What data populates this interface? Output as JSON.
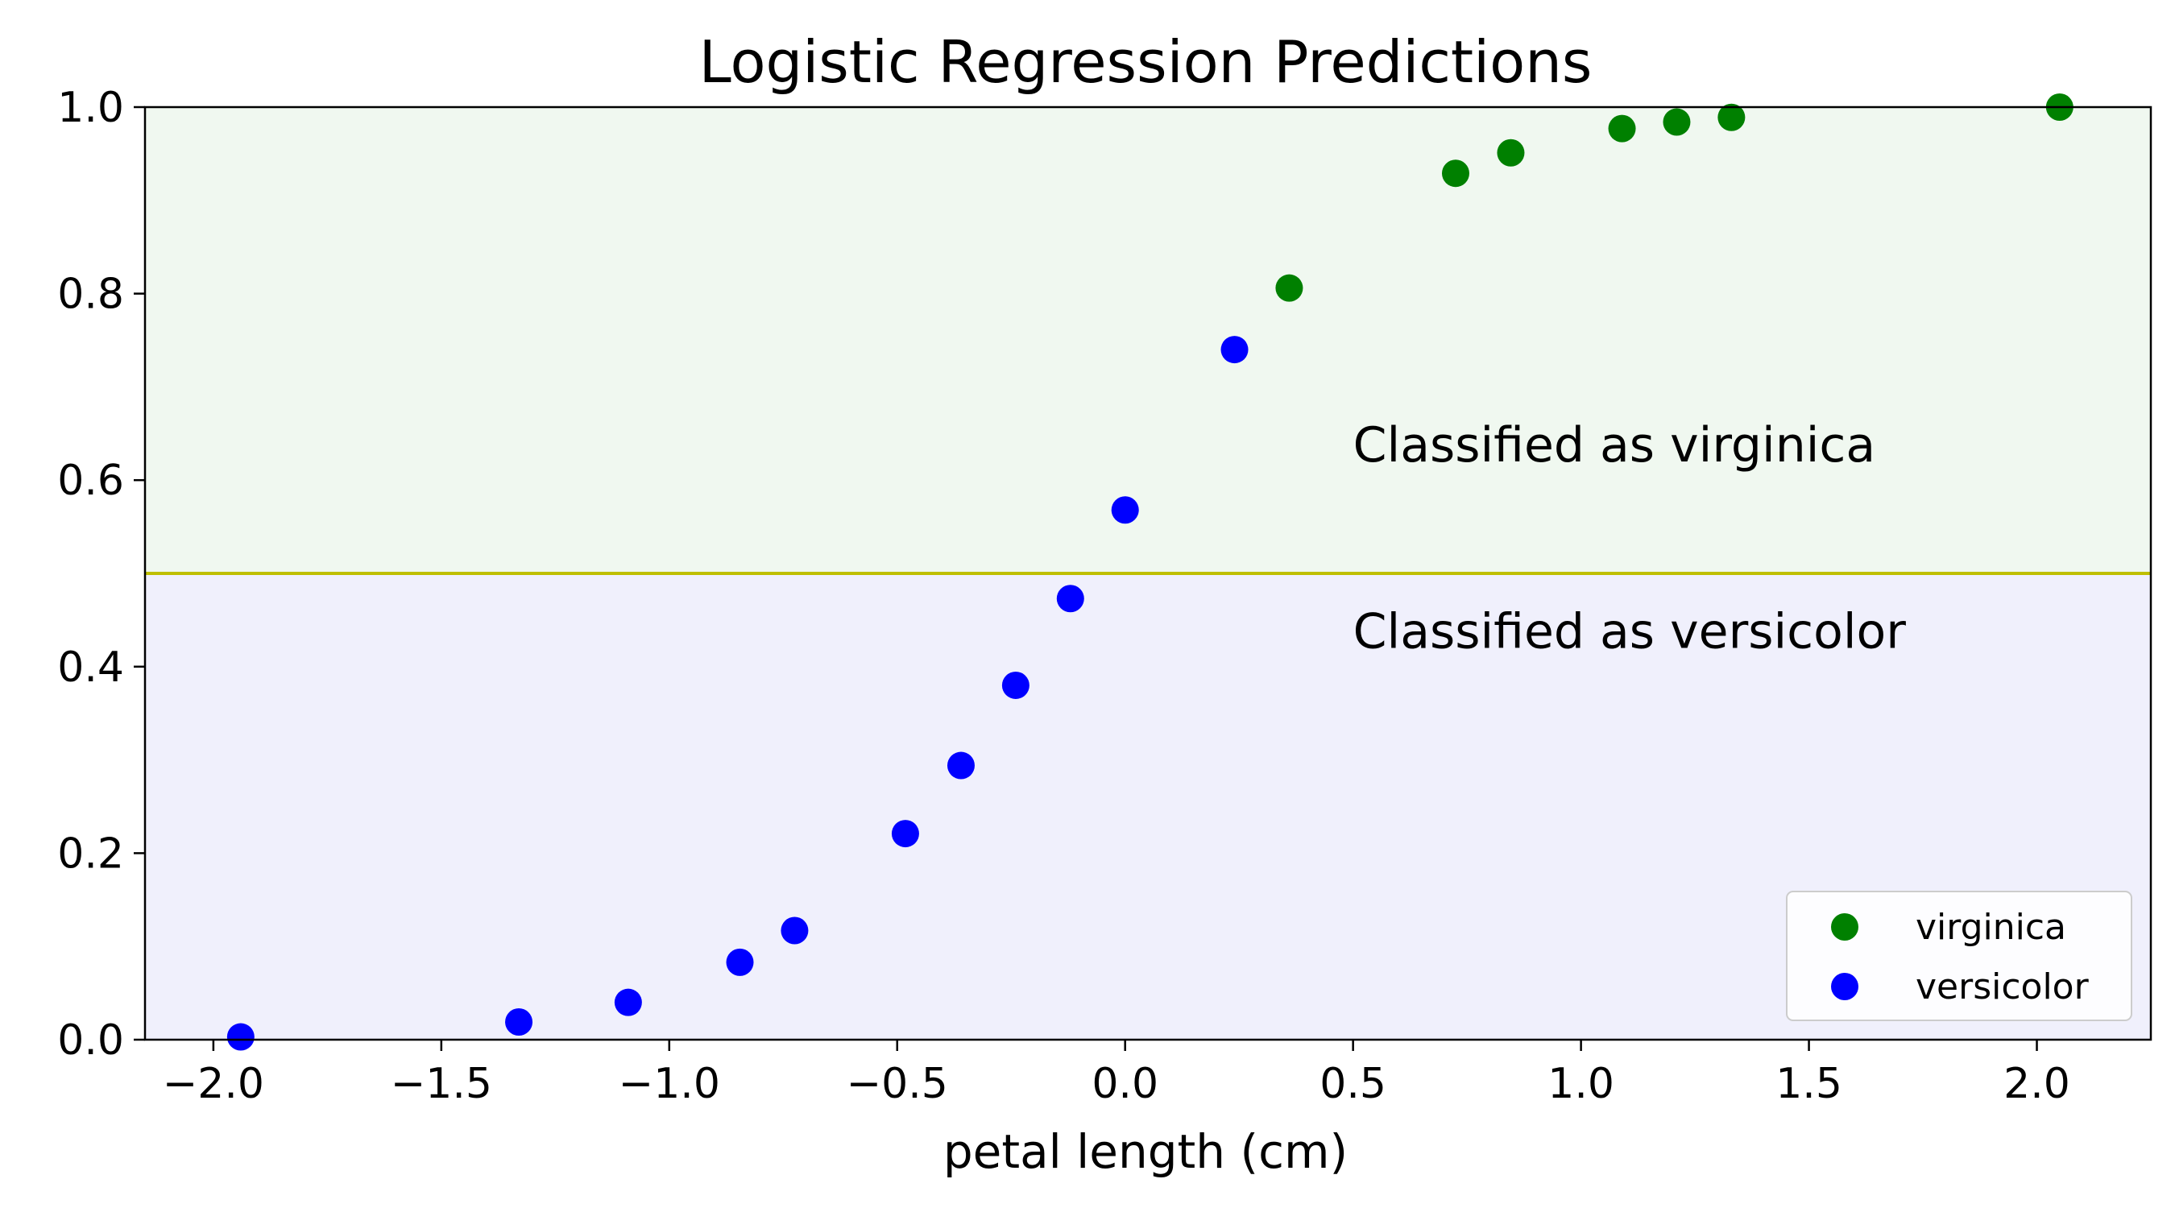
{
  "chart_data": {
    "type": "scatter",
    "title": "Logistic Regression Predictions",
    "xlabel": "petal length (cm)",
    "ylabel": "",
    "xlim": [
      -2.15,
      2.25
    ],
    "ylim": [
      0.0,
      1.0
    ],
    "x_ticks": [
      -2.0,
      -1.5,
      -1.0,
      -0.5,
      0.0,
      0.5,
      1.0,
      1.5,
      2.0
    ],
    "x_tick_labels": [
      "−2.0",
      "−1.5",
      "−1.0",
      "−0.5",
      "0.0",
      "0.5",
      "1.0",
      "1.5",
      "2.0"
    ],
    "y_ticks": [
      0.0,
      0.2,
      0.4,
      0.6,
      0.8,
      1.0
    ],
    "y_tick_labels": [
      "0.0",
      "0.2",
      "0.4",
      "0.6",
      "0.8",
      "1.0"
    ],
    "grid": false,
    "threshold": 0.5,
    "threshold_color": "#bfbf00",
    "regions": [
      {
        "from": 0.5,
        "to": 1.0,
        "color": "#f0f8f0",
        "label": "Classified as virginica",
        "label_x": 0.5,
        "label_y": 0.62
      },
      {
        "from": 0.0,
        "to": 0.5,
        "color": "#f0f0fc",
        "label": "Classified as versicolor",
        "label_x": 0.5,
        "label_y": 0.42
      }
    ],
    "legend_position": "bottom-right",
    "series": [
      {
        "name": "virginica",
        "color": "#008000",
        "points": [
          {
            "x": 0.36,
            "y": 0.806
          },
          {
            "x": 0.725,
            "y": 0.929
          },
          {
            "x": 0.846,
            "y": 0.951
          },
          {
            "x": 1.09,
            "y": 0.977
          },
          {
            "x": 1.21,
            "y": 0.984
          },
          {
            "x": 1.33,
            "y": 0.989
          },
          {
            "x": 2.05,
            "y": 1.0
          }
        ]
      },
      {
        "name": "versicolor",
        "color": "#0000ff",
        "points": [
          {
            "x": -1.94,
            "y": 0.003
          },
          {
            "x": -1.33,
            "y": 0.019
          },
          {
            "x": -1.09,
            "y": 0.04
          },
          {
            "x": -0.845,
            "y": 0.083
          },
          {
            "x": -0.725,
            "y": 0.117
          },
          {
            "x": -0.482,
            "y": 0.221
          },
          {
            "x": -0.36,
            "y": 0.294
          },
          {
            "x": -0.24,
            "y": 0.38
          },
          {
            "x": -0.12,
            "y": 0.473
          },
          {
            "x": 0.0,
            "y": 0.568
          },
          {
            "x": 0.24,
            "y": 0.74
          }
        ]
      }
    ]
  }
}
